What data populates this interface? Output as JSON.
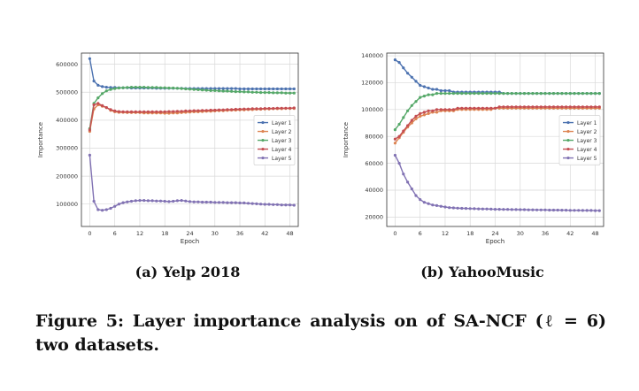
{
  "captions": {
    "a": "(a) Yelp 2018",
    "b": "(b) YahooMusic",
    "figure": "Figure 5: Layer importance analysis on of SA-NCF (ℓ = 6) two datasets."
  },
  "chart_data": [
    {
      "type": "line",
      "title": "",
      "xlabel": "Epoch",
      "ylabel": "Importance",
      "xlim": [
        -2,
        50
      ],
      "ylim": [
        20000,
        640000
      ],
      "xticks": [
        0,
        6,
        12,
        18,
        24,
        30,
        36,
        42,
        48
      ],
      "yticks": [
        100000,
        200000,
        300000,
        400000,
        500000,
        600000
      ],
      "grid": true,
      "legend_position": "right",
      "series": [
        {
          "name": "Layer 1",
          "color": "#4c72b0",
          "values": [
            620000,
            540000,
            525000,
            520000,
            518000,
            517000,
            517000,
            516000,
            516000,
            516000,
            515000,
            515000,
            515000,
            515000,
            515000,
            515000,
            514000,
            514000,
            514000,
            514000,
            514000,
            514000,
            514000,
            513000,
            513000,
            513000,
            513000,
            513000,
            513000,
            513000,
            513000,
            513000,
            513000,
            513000,
            513000,
            513000,
            512000,
            512000,
            512000,
            512000,
            512000,
            512000,
            512000,
            512000,
            512000,
            512000,
            512000,
            512000,
            512000,
            512000
          ]
        },
        {
          "name": "Layer 2",
          "color": "#dd8452",
          "values": [
            360000,
            440000,
            455000,
            450000,
            445000,
            435000,
            430000,
            428000,
            428000,
            427000,
            427000,
            427000,
            427000,
            426000,
            426000,
            426000,
            426000,
            426000,
            425000,
            425000,
            426000,
            426000,
            427000,
            428000,
            429000,
            430000,
            430000,
            431000,
            432000,
            432000,
            433000,
            434000,
            434000,
            435000,
            436000,
            436000,
            437000,
            437000,
            438000,
            438000,
            439000,
            439000,
            440000,
            440000,
            441000,
            441000,
            441000,
            442000,
            442000,
            442000
          ]
        },
        {
          "name": "Layer 3",
          "color": "#55a868",
          "values": [
            370000,
            460000,
            480000,
            495000,
            505000,
            510000,
            513000,
            515000,
            516000,
            517000,
            518000,
            518000,
            518000,
            518000,
            517000,
            517000,
            517000,
            516000,
            516000,
            515000,
            515000,
            514000,
            513000,
            512000,
            511000,
            510000,
            509000,
            508000,
            507000,
            506000,
            506000,
            505000,
            504000,
            504000,
            503000,
            502000,
            502000,
            501000,
            501000,
            500000,
            500000,
            499000,
            499000,
            499000,
            498000,
            498000,
            498000,
            497000,
            497000,
            497000
          ]
        },
        {
          "name": "Layer 4",
          "color": "#c44e52",
          "values": [
            365000,
            455000,
            460000,
            452000,
            445000,
            438000,
            433000,
            431000,
            430000,
            430000,
            430000,
            430000,
            430000,
            430000,
            430000,
            430000,
            430000,
            430000,
            430000,
            431000,
            431000,
            432000,
            432000,
            433000,
            433000,
            434000,
            434000,
            435000,
            435000,
            436000,
            436000,
            437000,
            437000,
            438000,
            438000,
            439000,
            439000,
            440000,
            440000,
            441000,
            441000,
            441000,
            442000,
            442000,
            442000,
            443000,
            443000,
            443000,
            443000,
            444000
          ]
        },
        {
          "name": "Layer 5",
          "color": "#8172b3",
          "values": [
            275000,
            110000,
            80000,
            78000,
            80000,
            85000,
            92000,
            100000,
            105000,
            108000,
            110000,
            112000,
            113000,
            113000,
            112000,
            112000,
            111000,
            111000,
            110000,
            109000,
            110000,
            112000,
            113000,
            111000,
            109000,
            108000,
            108000,
            107000,
            107000,
            107000,
            106000,
            106000,
            106000,
            105000,
            105000,
            105000,
            104000,
            104000,
            103000,
            102000,
            101000,
            100000,
            99000,
            99000,
            98000,
            98000,
            97000,
            97000,
            97000,
            96000
          ]
        }
      ]
    },
    {
      "type": "line",
      "title": "",
      "xlabel": "Epoch",
      "ylabel": "Importance",
      "xlim": [
        -2,
        50
      ],
      "ylim": [
        13000,
        142000
      ],
      "xticks": [
        0,
        6,
        12,
        18,
        24,
        30,
        36,
        42,
        48
      ],
      "yticks": [
        20000,
        40000,
        60000,
        80000,
        100000,
        120000,
        140000
      ],
      "grid": true,
      "legend_position": "right",
      "series": [
        {
          "name": "Layer 1",
          "color": "#4c72b0",
          "values": [
            137000,
            135000,
            131000,
            127000,
            124000,
            121000,
            118000,
            117000,
            116000,
            115000,
            115000,
            114000,
            114000,
            114000,
            113000,
            113000,
            113000,
            113000,
            113000,
            113000,
            113000,
            113000,
            113000,
            113000,
            113000,
            113000,
            112000,
            112000,
            112000,
            112000,
            112000,
            112000,
            112000,
            112000,
            112000,
            112000,
            112000,
            112000,
            112000,
            112000,
            112000,
            112000,
            112000,
            112000,
            112000,
            112000,
            112000,
            112000,
            112000,
            112000
          ]
        },
        {
          "name": "Layer 2",
          "color": "#dd8452",
          "values": [
            75000,
            79000,
            83000,
            87000,
            90000,
            93000,
            95000,
            96000,
            97000,
            98000,
            98000,
            99000,
            99000,
            99000,
            99000,
            100000,
            100000,
            100000,
            100000,
            100000,
            100000,
            100000,
            100000,
            100000,
            101000,
            101000,
            101000,
            101000,
            101000,
            101000,
            101000,
            101000,
            101000,
            101000,
            101000,
            101000,
            101000,
            101000,
            101000,
            101000,
            101000,
            101000,
            101000,
            101000,
            101000,
            101000,
            101000,
            101000,
            101000,
            101000
          ]
        },
        {
          "name": "Layer 3",
          "color": "#55a868",
          "values": [
            85000,
            89000,
            94000,
            99000,
            103000,
            106000,
            109000,
            110000,
            111000,
            111000,
            112000,
            112000,
            112000,
            112000,
            112000,
            112000,
            112000,
            112000,
            112000,
            112000,
            112000,
            112000,
            112000,
            112000,
            112000,
            112000,
            112000,
            112000,
            112000,
            112000,
            112000,
            112000,
            112000,
            112000,
            112000,
            112000,
            112000,
            112000,
            112000,
            112000,
            112000,
            112000,
            112000,
            112000,
            112000,
            112000,
            112000,
            112000,
            112000,
            112000
          ]
        },
        {
          "name": "Layer 4",
          "color": "#c44e52",
          "values": [
            78000,
            80000,
            84000,
            88000,
            92000,
            95000,
            97000,
            98000,
            99000,
            99000,
            100000,
            100000,
            100000,
            100000,
            100000,
            101000,
            101000,
            101000,
            101000,
            101000,
            101000,
            101000,
            101000,
            101000,
            101000,
            102000,
            102000,
            102000,
            102000,
            102000,
            102000,
            102000,
            102000,
            102000,
            102000,
            102000,
            102000,
            102000,
            102000,
            102000,
            102000,
            102000,
            102000,
            102000,
            102000,
            102000,
            102000,
            102000,
            102000,
            102000
          ]
        },
        {
          "name": "Layer 5",
          "color": "#8172b3",
          "values": [
            66000,
            60000,
            52000,
            46000,
            41000,
            36000,
            33000,
            31000,
            30000,
            29000,
            28500,
            28000,
            27500,
            27000,
            26800,
            26600,
            26500,
            26400,
            26300,
            26200,
            26100,
            26000,
            26000,
            25900,
            25800,
            25800,
            25700,
            25700,
            25600,
            25600,
            25500,
            25500,
            25400,
            25400,
            25300,
            25300,
            25300,
            25200,
            25200,
            25200,
            25100,
            25100,
            25000,
            25000,
            25000,
            24900,
            24900,
            24900,
            24800,
            24800
          ]
        }
      ]
    }
  ]
}
